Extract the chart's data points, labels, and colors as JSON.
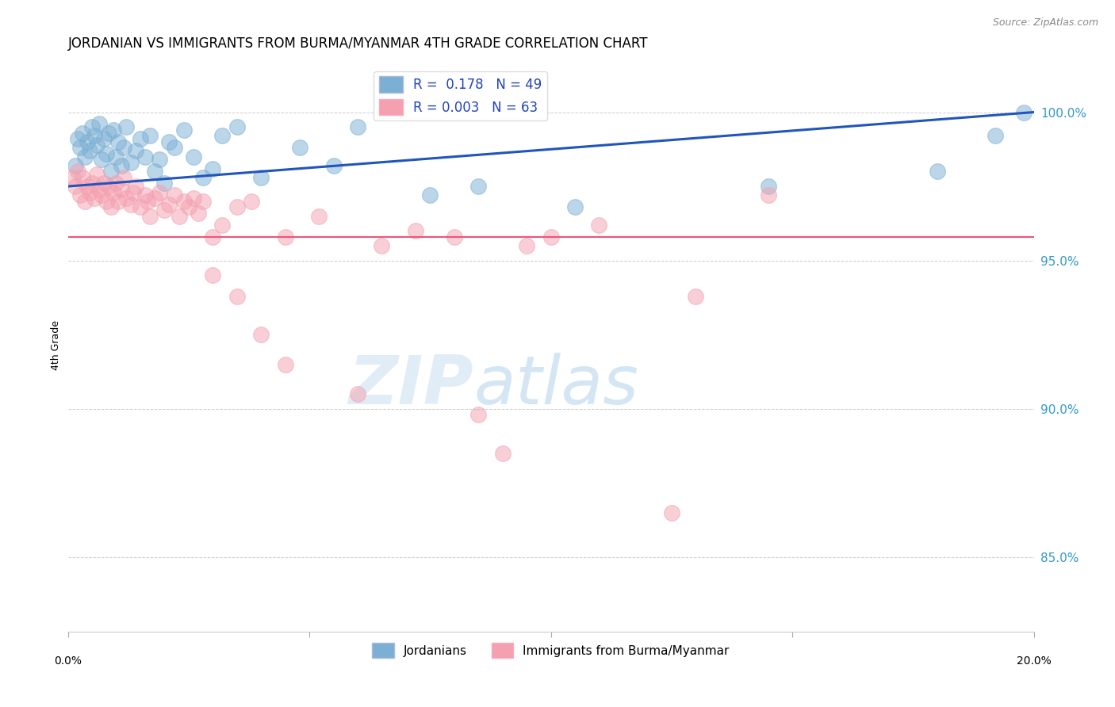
{
  "title": "JORDANIAN VS IMMIGRANTS FROM BURMA/MYANMAR 4TH GRADE CORRELATION CHART",
  "source": "Source: ZipAtlas.com",
  "ylabel": "4th Grade",
  "y_ticks": [
    85.0,
    90.0,
    95.0,
    100.0
  ],
  "y_tick_labels": [
    "85.0%",
    "90.0%",
    "95.0%",
    "100.0%"
  ],
  "legend_blue_label": "Jordanians",
  "legend_pink_label": "Immigrants from Burma/Myanmar",
  "R_blue": 0.178,
  "N_blue": 49,
  "R_pink": 0.003,
  "N_pink": 63,
  "blue_color": "#7BAFD4",
  "pink_color": "#F4A0B0",
  "trend_blue_color": "#2255BB",
  "trend_pink_color": "#EE5577",
  "watermark_zip": "ZIP",
  "watermark_atlas": "atlas",
  "xlim": [
    0.0,
    20.0
  ],
  "ylim": [
    82.5,
    101.8
  ],
  "blue_x": [
    0.15,
    0.2,
    0.25,
    0.3,
    0.35,
    0.4,
    0.45,
    0.5,
    0.55,
    0.6,
    0.65,
    0.7,
    0.75,
    0.8,
    0.85,
    0.9,
    0.95,
    1.0,
    1.05,
    1.1,
    1.15,
    1.2,
    1.3,
    1.4,
    1.5,
    1.6,
    1.7,
    1.8,
    1.9,
    2.0,
    2.1,
    2.2,
    2.4,
    2.6,
    2.8,
    3.0,
    3.2,
    3.5,
    4.0,
    4.8,
    5.5,
    6.0,
    7.5,
    8.5,
    10.5,
    14.5,
    18.0,
    19.2,
    19.8
  ],
  "blue_y": [
    98.2,
    99.1,
    98.8,
    99.3,
    98.5,
    99.0,
    98.7,
    99.5,
    99.2,
    98.9,
    99.6,
    98.4,
    99.1,
    98.6,
    99.3,
    98.0,
    99.4,
    98.5,
    99.0,
    98.2,
    98.8,
    99.5,
    98.3,
    98.7,
    99.1,
    98.5,
    99.2,
    98.0,
    98.4,
    97.6,
    99.0,
    98.8,
    99.4,
    98.5,
    97.8,
    98.1,
    99.2,
    99.5,
    97.8,
    98.8,
    98.2,
    99.5,
    97.2,
    97.5,
    96.8,
    97.5,
    98.0,
    99.2,
    100.0
  ],
  "pink_x": [
    0.1,
    0.15,
    0.2,
    0.25,
    0.3,
    0.35,
    0.4,
    0.45,
    0.5,
    0.55,
    0.6,
    0.65,
    0.7,
    0.75,
    0.8,
    0.85,
    0.9,
    0.95,
    1.0,
    1.05,
    1.1,
    1.15,
    1.2,
    1.3,
    1.35,
    1.4,
    1.5,
    1.6,
    1.65,
    1.7,
    1.8,
    1.9,
    2.0,
    2.1,
    2.2,
    2.3,
    2.4,
    2.5,
    2.6,
    2.7,
    2.8,
    3.0,
    3.2,
    3.5,
    3.8,
    4.5,
    5.2,
    6.5,
    7.2,
    8.0,
    9.5,
    10.0,
    11.0,
    13.0,
    14.5,
    3.0,
    3.5,
    4.0,
    4.5,
    6.0,
    8.5,
    9.0,
    12.5
  ],
  "pink_y": [
    97.8,
    97.5,
    98.0,
    97.2,
    97.8,
    97.0,
    97.5,
    97.3,
    97.6,
    97.1,
    97.9,
    97.4,
    97.2,
    97.6,
    97.0,
    97.5,
    96.8,
    97.3,
    97.6,
    97.0,
    97.4,
    97.8,
    97.1,
    96.9,
    97.3,
    97.5,
    96.8,
    97.2,
    97.0,
    96.5,
    97.1,
    97.3,
    96.7,
    96.9,
    97.2,
    96.5,
    97.0,
    96.8,
    97.1,
    96.6,
    97.0,
    95.8,
    96.2,
    96.8,
    97.0,
    95.8,
    96.5,
    95.5,
    96.0,
    95.8,
    95.5,
    95.8,
    96.2,
    93.8,
    97.2,
    94.5,
    93.8,
    92.5,
    91.5,
    90.5,
    89.8,
    88.5,
    86.5
  ],
  "trend_blue_x0": 0.0,
  "trend_blue_y0": 97.5,
  "trend_blue_x1": 20.0,
  "trend_blue_y1": 100.0,
  "trend_pink_y": 95.8,
  "x_label_ticks": [
    0,
    5,
    10,
    15,
    20
  ]
}
